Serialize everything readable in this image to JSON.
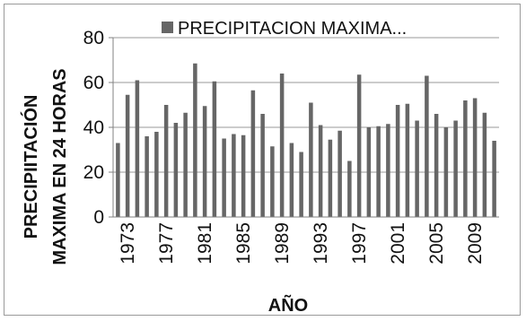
{
  "chart_data": {
    "type": "bar",
    "title": "",
    "xlabel": "AÑO",
    "ylabel_lines": [
      "PRECIPIITACIÓN",
      "MAXIMA  EN 24 HORAS"
    ],
    "ylim": [
      0,
      80
    ],
    "yticks": [
      0,
      20,
      40,
      60,
      80
    ],
    "grid": true,
    "legend_position": "top",
    "x_tick_labels": [
      "1973",
      "1977",
      "1981",
      "1985",
      "1989",
      "1993",
      "1997",
      "2001",
      "2005",
      "2009"
    ],
    "categories": [
      "1972",
      "1973",
      "1974",
      "1975",
      "1976",
      "1977",
      "1978",
      "1979",
      "1980",
      "1981",
      "1982",
      "1983",
      "1984",
      "1985",
      "1986",
      "1987",
      "1988",
      "1989",
      "1990",
      "1991",
      "1992",
      "1993",
      "1994",
      "1995",
      "1996",
      "1997",
      "1998",
      "1999",
      "2000",
      "2001",
      "2002",
      "2003",
      "2004",
      "2005",
      "2006",
      "2007",
      "2008",
      "2009",
      "2010",
      "2011"
    ],
    "series": [
      {
        "name": "PRECIPITACION MAXIMA...",
        "color": "#666666",
        "values": [
          33,
          54.5,
          61,
          36,
          38,
          50,
          42,
          46.5,
          68.5,
          49.5,
          60.5,
          35,
          37,
          36.5,
          56.5,
          46,
          31.5,
          64,
          33,
          29,
          51,
          41,
          34.5,
          38.5,
          25,
          63.5,
          40,
          40.5,
          41.5,
          50,
          50.5,
          43,
          63,
          46,
          40,
          43,
          52,
          53,
          46.5,
          34
        ]
      }
    ]
  }
}
